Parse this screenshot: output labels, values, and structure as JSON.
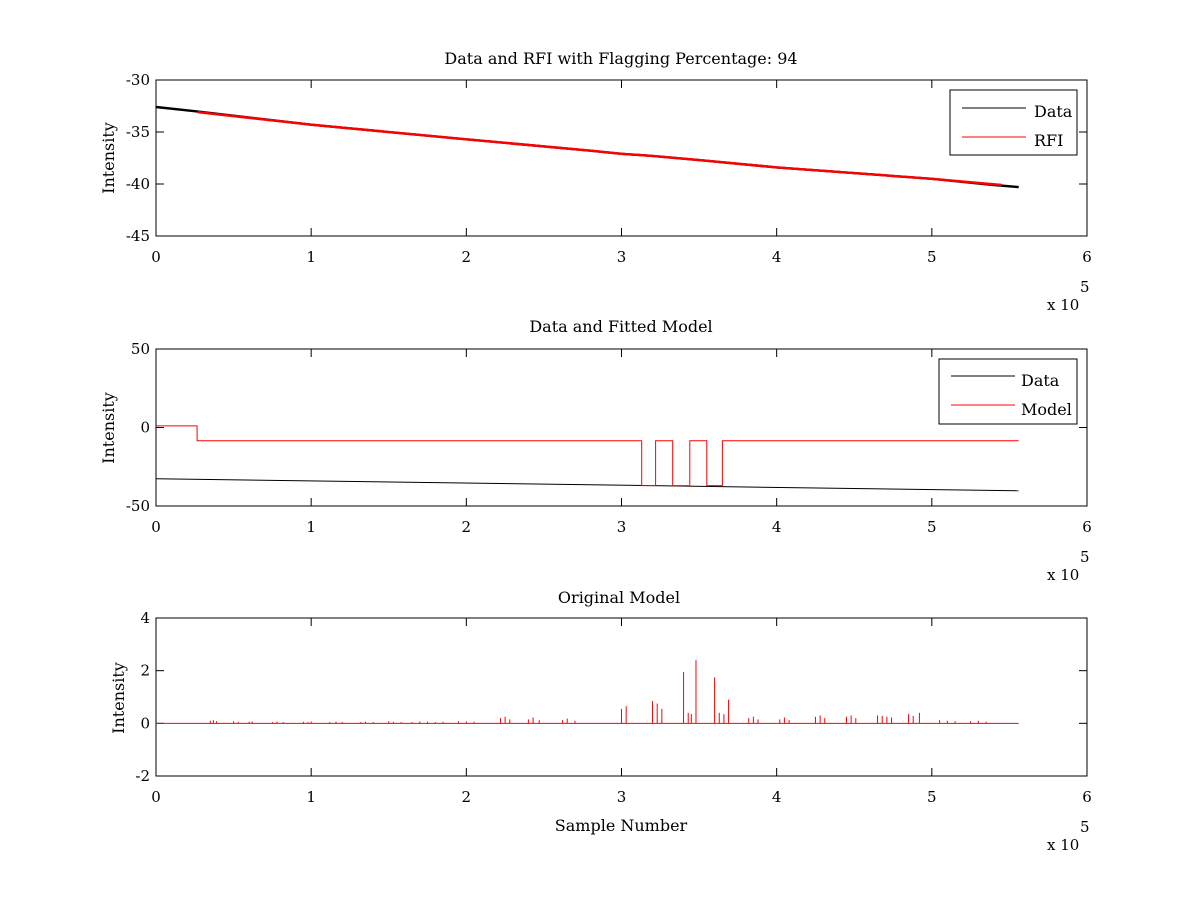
{
  "colors": {
    "data": "#000000",
    "rfi": "#ff0000",
    "axes": "#000000",
    "background": "#ffffff"
  },
  "chart_data": [
    {
      "type": "line",
      "title": "Data and RFI with Flagging Percentage: 94",
      "xlabel": "",
      "ylabel": "Intensity",
      "xlim": [
        0,
        600000
      ],
      "ylim": [
        -45,
        -30
      ],
      "xticks": [
        "0",
        "1",
        "2",
        "3",
        "4",
        "5",
        "6"
      ],
      "yticks": [
        "-30",
        "-35",
        "-40",
        "-45"
      ],
      "x_exponent": {
        "base": "x 10",
        "power": "5"
      },
      "legend_position": "top-right",
      "series": [
        {
          "name": "Data",
          "color": "#000000",
          "x": [
            0,
            25000,
            100000,
            200000,
            280000,
            300000,
            320000,
            350000,
            400000,
            500000,
            540000,
            556000
          ],
          "y": [
            -32.6,
            -33.0,
            -34.3,
            -35.7,
            -36.8,
            -37.1,
            -37.3,
            -37.7,
            -38.4,
            -39.5,
            -40.1,
            -40.3
          ]
        },
        {
          "name": "RFI",
          "color": "#ff0000",
          "x": [
            27000,
            100000,
            200000,
            280000,
            300000,
            320000,
            350000,
            400000,
            500000,
            545000
          ],
          "y": [
            -33.1,
            -34.3,
            -35.7,
            -36.8,
            -37.1,
            -37.3,
            -37.7,
            -38.4,
            -39.5,
            -40.1
          ]
        }
      ]
    },
    {
      "type": "line",
      "title": "Data and Fitted Model",
      "xlabel": "",
      "ylabel": "Intensity",
      "xlim": [
        0,
        600000
      ],
      "ylim": [
        -50,
        50
      ],
      "xticks": [
        "0",
        "1",
        "2",
        "3",
        "4",
        "5",
        "6"
      ],
      "yticks": [
        "50",
        "0",
        "-50"
      ],
      "x_exponent": {
        "base": "x 10",
        "power": "5"
      },
      "legend_position": "top-right",
      "series": [
        {
          "name": "Data",
          "color": "#000000",
          "x": [
            0,
            556000
          ],
          "y": [
            -32.6,
            -40.3
          ]
        },
        {
          "name": "Model",
          "color": "#ff0000",
          "x": [
            0,
            26500,
            26500,
            313000,
            313000,
            322000,
            322000,
            333000,
            333000,
            344000,
            344000,
            355000,
            355000,
            365000,
            365000,
            556000
          ],
          "y": [
            1,
            1,
            -8.5,
            -8.5,
            -37,
            -37,
            -8.5,
            -8.5,
            -37,
            -37,
            -8.5,
            -8.5,
            -37,
            -37,
            -8.5,
            -8.5
          ]
        }
      ]
    },
    {
      "type": "line",
      "title": "Original Model",
      "xlabel": "Sample Number",
      "ylabel": "Intensity",
      "xlim": [
        0,
        600000
      ],
      "ylim": [
        -2,
        4
      ],
      "xticks": [
        "0",
        "1",
        "2",
        "3",
        "4",
        "5",
        "6"
      ],
      "yticks": [
        "4",
        "2",
        "0",
        "-2"
      ],
      "x_exponent": {
        "base": "x 10",
        "power": "5"
      },
      "baseline": {
        "x": [
          0,
          556000
        ],
        "y": 0
      },
      "spikes": {
        "color": "#ff0000",
        "x": [
          35000,
          37000,
          39000,
          50000,
          53000,
          60000,
          62000,
          75000,
          78000,
          82000,
          95000,
          98000,
          100000,
          112000,
          116000,
          120000,
          132000,
          135000,
          140000,
          150000,
          153000,
          158000,
          165000,
          170000,
          175000,
          180000,
          185000,
          195000,
          200000,
          205000,
          222000,
          225000,
          228000,
          240000,
          243000,
          247000,
          262000,
          265000,
          270000,
          300000,
          303000,
          320000,
          323000,
          326000,
          340000,
          343000,
          345000,
          348000,
          360000,
          363000,
          366000,
          369000,
          382000,
          385000,
          388000,
          402000,
          405000,
          408000,
          425000,
          428000,
          431000,
          445000,
          448000,
          451000,
          465000,
          468000,
          471000,
          474000,
          485000,
          488000,
          492000,
          505000,
          510000,
          515000,
          525000,
          530000,
          535000
        ],
        "y": [
          0.1,
          0.12,
          0.08,
          0.08,
          0.05,
          0.06,
          0.07,
          0.05,
          0.07,
          0.05,
          0.06,
          0.05,
          0.07,
          0.05,
          0.06,
          0.05,
          0.05,
          0.06,
          0.05,
          0.08,
          0.06,
          0.05,
          0.05,
          0.07,
          0.06,
          0.05,
          0.06,
          0.08,
          0.07,
          0.06,
          0.2,
          0.25,
          0.15,
          0.15,
          0.22,
          0.12,
          0.12,
          0.18,
          0.1,
          0.55,
          0.65,
          0.85,
          0.75,
          0.55,
          1.95,
          0.4,
          0.35,
          2.4,
          1.75,
          0.4,
          0.35,
          0.9,
          0.2,
          0.25,
          0.15,
          0.15,
          0.22,
          0.12,
          0.25,
          0.3,
          0.2,
          0.25,
          0.3,
          0.2,
          0.3,
          0.28,
          0.25,
          0.22,
          0.35,
          0.28,
          0.4,
          0.12,
          0.1,
          0.08,
          0.08,
          0.1,
          0.06
        ]
      }
    }
  ]
}
